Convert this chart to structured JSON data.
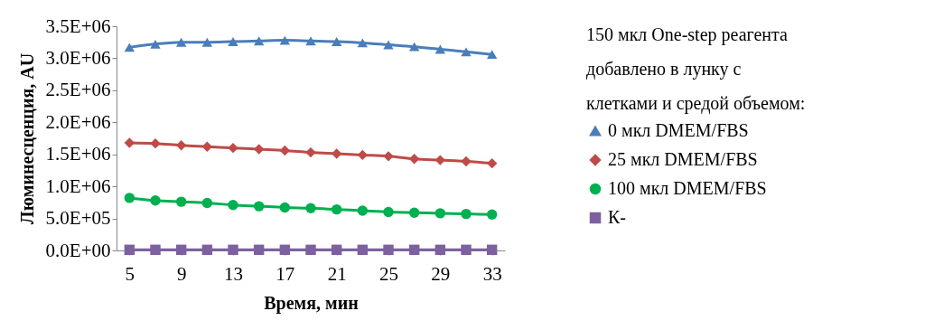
{
  "chart_data": {
    "type": "line",
    "xlabel": "Время, мин",
    "ylabel": "Люминесценция, AU",
    "legend_title": "150 мкл One-step реагента добавлено в лунку с клетками и средой объемом:",
    "legend": "right",
    "grid": false,
    "x": [
      5,
      7,
      9,
      11,
      13,
      15,
      17,
      19,
      21,
      23,
      25,
      27,
      29,
      31,
      33
    ],
    "xlim": [
      4,
      34
    ],
    "xticks": [
      5,
      9,
      13,
      17,
      21,
      25,
      29,
      33
    ],
    "ylim": [
      0,
      3500000
    ],
    "yticks": [
      {
        "value": 0,
        "label": "0.0E+00"
      },
      {
        "value": 500000,
        "label": "5.0E+05"
      },
      {
        "value": 1000000,
        "label": "1.0E+06"
      },
      {
        "value": 1500000,
        "label": "1.5E+06"
      },
      {
        "value": 2000000,
        "label": "2.0E+06"
      },
      {
        "value": 2500000,
        "label": "2.5E+06"
      },
      {
        "value": 3000000,
        "label": "3.0E+06"
      },
      {
        "value": 3500000,
        "label": "3.5E+06"
      }
    ],
    "series": [
      {
        "name": "0 мкл DMEM/FBS",
        "color": "#4a7ebb",
        "marker": "triangle",
        "values": [
          3170000,
          3220000,
          3250000,
          3250000,
          3260000,
          3270000,
          3280000,
          3270000,
          3260000,
          3240000,
          3210000,
          3180000,
          3140000,
          3100000,
          3060000
        ]
      },
      {
        "name": "25 мкл DMEM/FBS",
        "color": "#be4b48",
        "marker": "diamond",
        "values": [
          1680000,
          1670000,
          1640000,
          1620000,
          1600000,
          1580000,
          1560000,
          1530000,
          1510000,
          1490000,
          1470000,
          1430000,
          1410000,
          1390000,
          1360000
        ]
      },
      {
        "name": "100 мкл DMEM/FBS",
        "color": "#00b050",
        "marker": "circle",
        "values": [
          820000,
          780000,
          760000,
          740000,
          710000,
          690000,
          670000,
          660000,
          640000,
          620000,
          600000,
          590000,
          580000,
          570000,
          560000
        ]
      },
      {
        "name": "К-",
        "color": "#7d60a0",
        "marker": "square",
        "values": [
          10000,
          10000,
          10000,
          10000,
          10000,
          10000,
          10000,
          10000,
          10000,
          10000,
          10000,
          10000,
          10000,
          10000,
          10000
        ]
      }
    ]
  }
}
